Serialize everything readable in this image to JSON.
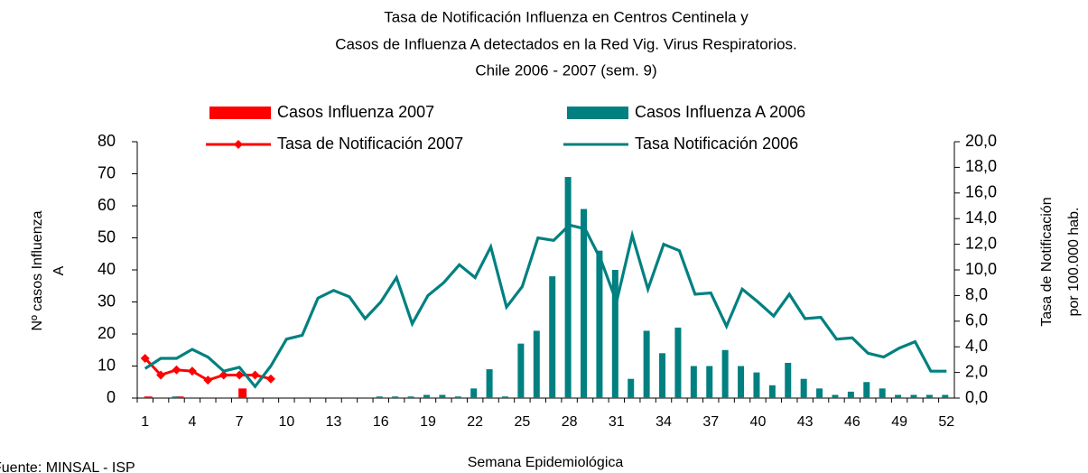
{
  "chart_data": {
    "type": "bar_line",
    "title": [
      "Tasa de Notificación Influenza en Centros Centinela  y",
      "Casos de Influenza A detectados en la Red Vig. Virus Respiratorios.",
      "Chile 2006 - 2007 (sem. 9)"
    ],
    "y_label": [
      "Nº casos Influenza",
      "A"
    ],
    "y2_label": [
      "Tasa de Notificación",
      "por 100.000 hab."
    ],
    "x_label": "Semana Epidemiológica",
    "source": "Fuente: MINSAL - ISP",
    "categories": [
      1,
      null,
      null,
      4,
      null,
      null,
      7,
      null,
      null,
      10,
      null,
      null,
      13,
      null,
      null,
      16,
      null,
      null,
      19,
      null,
      null,
      22,
      null,
      null,
      25,
      null,
      null,
      28,
      null,
      null,
      31,
      null,
      null,
      34,
      null,
      null,
      37,
      null,
      null,
      40,
      null,
      null,
      43,
      null,
      null,
      46,
      null,
      null,
      49,
      null,
      null,
      52
    ],
    "ylim": [
      0,
      80
    ],
    "yticks": [
      0,
      10,
      20,
      30,
      40,
      50,
      60,
      70,
      80
    ],
    "y2lim": [
      0,
      20
    ],
    "y2ticks": [
      {
        "value": 0,
        "label": "0,0"
      },
      {
        "value": 2,
        "label": "2,0"
      },
      {
        "value": 4,
        "label": "4,0"
      },
      {
        "value": 6,
        "label": "6,0"
      },
      {
        "value": 8,
        "label": "8,0"
      },
      {
        "value": 10,
        "label": "10,0"
      },
      {
        "value": 12,
        "label": "12,0"
      },
      {
        "value": 14,
        "label": "14,0"
      },
      {
        "value": 16,
        "label": "16,0"
      },
      {
        "value": 18,
        "label": "18,0"
      },
      {
        "value": 20,
        "label": "20,0"
      }
    ],
    "series": [
      {
        "name": "Casos Influenza 2007",
        "kind": "bar",
        "color": "#ff0000",
        "values": [
          0.5,
          0,
          0.5,
          0,
          0,
          0,
          3,
          0,
          0,
          null,
          null,
          null,
          null,
          null,
          null,
          null,
          null,
          null,
          null,
          null,
          null,
          null,
          null,
          null,
          null,
          null,
          null,
          null,
          null,
          null,
          null,
          null,
          null,
          null,
          null,
          null,
          null,
          null,
          null,
          null,
          null,
          null,
          null,
          null,
          null,
          null,
          null,
          null,
          null,
          null,
          null,
          null
        ]
      },
      {
        "name": "Casos Influenza A 2006",
        "kind": "bar",
        "color": "#008080",
        "values": [
          0,
          0,
          0.5,
          0,
          0,
          0,
          0,
          0,
          0,
          0,
          0,
          0,
          0,
          0,
          0,
          0.5,
          0.5,
          0.5,
          1,
          1,
          0.5,
          3,
          9,
          0.5,
          17,
          21,
          38,
          69,
          59,
          46,
          40,
          6,
          21,
          14,
          22,
          10,
          10,
          15,
          10,
          8,
          4,
          11,
          6,
          3,
          1,
          2,
          5,
          3,
          1,
          1,
          1,
          1
        ]
      },
      {
        "name": "Tasa de Notificación 2007",
        "kind": "line",
        "axis": "y2",
        "color": "#ff0000",
        "marker": true,
        "values": [
          3.1,
          1.8,
          2.2,
          2.1,
          1.4,
          1.8,
          1.8,
          1.8,
          1.5,
          null,
          null,
          null,
          null,
          null,
          null,
          null,
          null,
          null,
          null,
          null,
          null,
          null,
          null,
          null,
          null,
          null,
          null,
          null,
          null,
          null,
          null,
          null,
          null,
          null,
          null,
          null,
          null,
          null,
          null,
          null,
          null,
          null,
          null,
          null,
          null,
          null,
          null,
          null,
          null,
          null,
          null,
          null
        ]
      },
      {
        "name": "Tasa Notificación 2006",
        "kind": "line",
        "axis": "y2",
        "color": "#008080",
        "marker": false,
        "values": [
          2.3,
          3.1,
          3.1,
          3.8,
          3.2,
          2.1,
          2.4,
          0.9,
          2.5,
          4.6,
          4.9,
          7.8,
          8.4,
          7.9,
          6.2,
          7.5,
          9.4,
          5.8,
          8.0,
          9.0,
          10.4,
          9.4,
          11.8,
          7.1,
          8.7,
          12.5,
          12.3,
          13.5,
          13.2,
          10.8,
          7.5,
          12.7,
          8.5,
          12.0,
          11.5,
          8.1,
          8.2,
          5.6,
          8.5,
          7.5,
          6.4,
          8.1,
          6.2,
          6.3,
          4.6,
          4.7,
          3.5,
          3.2,
          3.9,
          4.4,
          2.1,
          2.1
        ]
      }
    ]
  }
}
